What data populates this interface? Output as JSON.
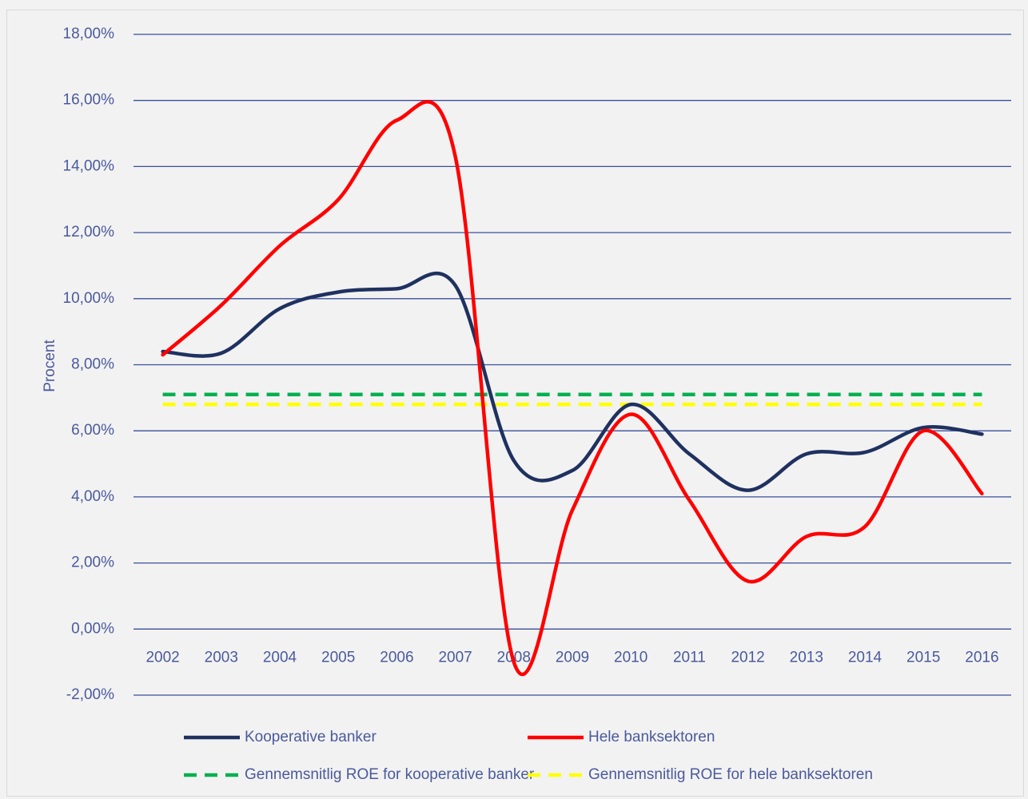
{
  "chart_data": {
    "type": "line",
    "ylabel": "Procent",
    "categories": [
      "2002",
      "2003",
      "2004",
      "2005",
      "2006",
      "2007",
      "2008",
      "2009",
      "2010",
      "2011",
      "2012",
      "2013",
      "2014",
      "2015",
      "2016"
    ],
    "series": [
      {
        "name": "Kooperative banker",
        "color": "#1f3160",
        "dashed": false,
        "values": [
          8.4,
          8.35,
          9.7,
          10.2,
          10.3,
          10.4,
          5.1,
          4.8,
          6.8,
          5.3,
          4.2,
          5.3,
          5.35,
          6.1,
          5.9
        ]
      },
      {
        "name": "Hele banksektoren",
        "color": "#ff0000",
        "dashed": false,
        "values": [
          8.3,
          9.8,
          11.6,
          13.0,
          15.4,
          14.3,
          -1.0,
          3.6,
          6.5,
          3.9,
          1.45,
          2.8,
          3.1,
          6.0,
          4.1
        ]
      },
      {
        "name": "Gennemsnitlig ROE for kooperative banker",
        "color": "#00b050",
        "dashed": true,
        "values": [
          7.1,
          7.1,
          7.1,
          7.1,
          7.1,
          7.1,
          7.1,
          7.1,
          7.1,
          7.1,
          7.1,
          7.1,
          7.1,
          7.1,
          7.1
        ]
      },
      {
        "name": "Gennemsnitlig ROE for hele banksektoren",
        "color": "#ffff00",
        "dashed": true,
        "values": [
          6.8,
          6.8,
          6.8,
          6.8,
          6.8,
          6.8,
          6.8,
          6.8,
          6.8,
          6.8,
          6.8,
          6.8,
          6.8,
          6.8,
          6.8
        ]
      }
    ],
    "ylim": [
      -2,
      18
    ],
    "yticks": [
      {
        "value": -2,
        "label": "-2,00%"
      },
      {
        "value": 0,
        "label": "0,00%"
      },
      {
        "value": 2,
        "label": "2,00%"
      },
      {
        "value": 4,
        "label": "4,00%"
      },
      {
        "value": 6,
        "label": "6,00%"
      },
      {
        "value": 8,
        "label": "8,00%"
      },
      {
        "value": 10,
        "label": "10,00%"
      },
      {
        "value": 12,
        "label": "12,00%"
      },
      {
        "value": 14,
        "label": "14,00%"
      },
      {
        "value": 16,
        "label": "16,00%"
      },
      {
        "value": 18,
        "label": "18,00%"
      }
    ],
    "grid": true,
    "smooth": true,
    "legend": "bottom"
  }
}
